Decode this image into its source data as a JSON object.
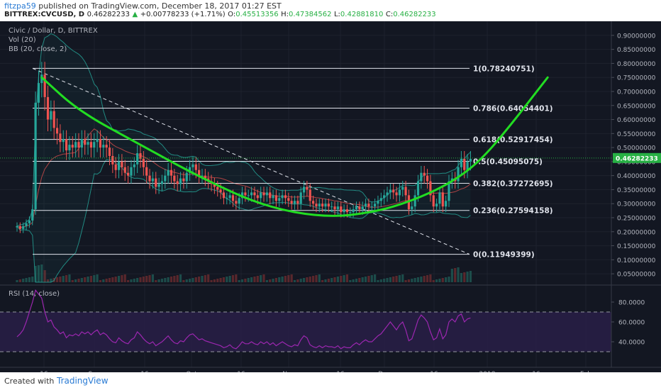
{
  "header": {
    "user": "fitzpa59",
    "published": "published on TradingView.com, December 18, 2017 01:27 EST",
    "symbol": "BITTREX:CVCUSD, D",
    "last": "0.46282233",
    "change": "+0.00778233 (+1.71%)",
    "o_label": "O:",
    "o": "0.45513356",
    "h_label": "H:",
    "h": "0.47384562",
    "l_label": "L:",
    "l": "0.42881810",
    "c_label": "C:",
    "c": "0.46282233"
  },
  "legend": {
    "title": "Civic / Dollar, D, BITTREX",
    "vol": "Vol (20)",
    "bb": "BB (20, close, 2)",
    "rsi": "RSI (14, close)"
  },
  "footer": {
    "created": "Created with",
    "brand": "TradingView"
  },
  "colors": {
    "background": "#131722",
    "up": "#26a69a",
    "down": "#ef5350",
    "green_curve": "#22dd22",
    "rsi": "#9c27b0",
    "rsi_band": "#2b1f4a",
    "price_tag": "#27b044"
  },
  "chart_data": [
    {
      "type": "candlestick",
      "title": "Civic / Dollar, D, BITTREX",
      "y_range": [
        0.02,
        0.93
      ],
      "price_ticks": [
        "0.90000000",
        "0.85000000",
        "0.80000000",
        "0.75000000",
        "0.70000000",
        "0.65000000",
        "0.60000000",
        "0.55000000",
        "0.50000000",
        "0.45000000",
        "0.40000000",
        "0.35000000",
        "0.30000000",
        "0.25000000",
        "0.20000000",
        "0.15000000",
        "0.10000000",
        "0.05000000"
      ],
      "x_ticks": [
        "16",
        "Sep",
        "16",
        "Oct",
        "16",
        "Nov",
        "16",
        "Dec",
        "16",
        "2018",
        "16",
        "Feb"
      ],
      "last_price": "0.46282233",
      "fib_levels": [
        {
          "label": "1(0.78240751)",
          "value": 0.78240751
        },
        {
          "label": "0.786(0.64054401)",
          "value": 0.64054401
        },
        {
          "label": "0.618(0.52917454)",
          "value": 0.52917454
        },
        {
          "label": "0.5(0.45095075)",
          "value": 0.45095075
        },
        {
          "label": "0.382(0.37272695)",
          "value": 0.37272695
        },
        {
          "label": "0.236(0.27594158)",
          "value": 0.27594158
        },
        {
          "label": "0(0.11949399)",
          "value": 0.11949399
        }
      ],
      "closes": [
        0.22,
        0.21,
        0.22,
        0.23,
        0.24,
        0.28,
        0.66,
        0.73,
        0.76,
        0.68,
        0.6,
        0.63,
        0.57,
        0.55,
        0.52,
        0.53,
        0.49,
        0.51,
        0.5,
        0.52,
        0.5,
        0.53,
        0.51,
        0.52,
        0.5,
        0.52,
        0.53,
        0.5,
        0.51,
        0.5,
        0.47,
        0.44,
        0.42,
        0.45,
        0.43,
        0.41,
        0.4,
        0.43,
        0.44,
        0.48,
        0.46,
        0.43,
        0.4,
        0.38,
        0.39,
        0.36,
        0.37,
        0.38,
        0.4,
        0.42,
        0.4,
        0.38,
        0.37,
        0.39,
        0.38,
        0.41,
        0.43,
        0.44,
        0.42,
        0.4,
        0.4,
        0.39,
        0.38,
        0.37,
        0.36,
        0.35,
        0.34,
        0.32,
        0.32,
        0.33,
        0.31,
        0.3,
        0.32,
        0.34,
        0.33,
        0.33,
        0.34,
        0.33,
        0.32,
        0.34,
        0.33,
        0.34,
        0.32,
        0.33,
        0.31,
        0.32,
        0.33,
        0.32,
        0.31,
        0.3,
        0.31,
        0.3,
        0.34,
        0.36,
        0.35,
        0.31,
        0.3,
        0.29,
        0.3,
        0.29,
        0.3,
        0.29,
        0.29,
        0.28,
        0.29,
        0.27,
        0.28,
        0.27,
        0.27,
        0.28,
        0.29,
        0.28,
        0.29,
        0.3,
        0.29,
        0.29,
        0.3,
        0.31,
        0.32,
        0.33,
        0.34,
        0.35,
        0.34,
        0.33,
        0.35,
        0.36,
        0.33,
        0.28,
        0.29,
        0.33,
        0.38,
        0.41,
        0.4,
        0.38,
        0.33,
        0.29,
        0.3,
        0.34,
        0.29,
        0.31,
        0.38,
        0.39,
        0.38,
        0.43,
        0.46,
        0.42,
        0.45,
        0.46
      ],
      "fib_anchor": {
        "x_index": 8,
        "y": 0.78240751,
        "x_end_index": 160,
        "y_end": 0.11949399
      },
      "curve": {
        "label": "green arc",
        "points_idx": [
          [
            8,
            0.75
          ],
          [
            20,
            0.63
          ],
          [
            40,
            0.51
          ],
          [
            60,
            0.39
          ],
          [
            80,
            0.29
          ],
          [
            100,
            0.25
          ],
          [
            116,
            0.27
          ],
          [
            128,
            0.31
          ],
          [
            140,
            0.37
          ],
          [
            150,
            0.45
          ],
          [
            160,
            0.58
          ],
          [
            172,
            0.75
          ]
        ]
      },
      "bollinger_period": 20
    },
    {
      "type": "line",
      "title": "RSI (14, close)",
      "y_range": [
        20,
        95
      ],
      "ticks": [
        "80.0000",
        "60.0000",
        "40.0000"
      ],
      "bands": [
        70,
        30
      ],
      "values": [
        45,
        48,
        52,
        60,
        70,
        80,
        92,
        88,
        84,
        70,
        60,
        62,
        55,
        52,
        48,
        50,
        44,
        47,
        46,
        48,
        46,
        50,
        48,
        50,
        47,
        50,
        52,
        47,
        49,
        47,
        43,
        40,
        39,
        44,
        41,
        39,
        38,
        42,
        44,
        50,
        47,
        43,
        40,
        38,
        40,
        36,
        38,
        40,
        43,
        46,
        42,
        39,
        38,
        41,
        40,
        44,
        47,
        48,
        45,
        42,
        43,
        41,
        40,
        39,
        38,
        37,
        36,
        34,
        35,
        37,
        34,
        33,
        36,
        40,
        38,
        38,
        40,
        38,
        37,
        40,
        38,
        40,
        37,
        39,
        36,
        38,
        40,
        38,
        36,
        35,
        37,
        36,
        42,
        46,
        44,
        37,
        35,
        34,
        36,
        34,
        36,
        35,
        35,
        34,
        36,
        33,
        35,
        34,
        34,
        37,
        39,
        37,
        40,
        42,
        40,
        40,
        43,
        46,
        48,
        52,
        56,
        60,
        56,
        52,
        57,
        60,
        52,
        41,
        43,
        52,
        62,
        67,
        64,
        60,
        50,
        42,
        44,
        53,
        43,
        47,
        60,
        63,
        60,
        66,
        68,
        60,
        63,
        64
      ]
    }
  ]
}
